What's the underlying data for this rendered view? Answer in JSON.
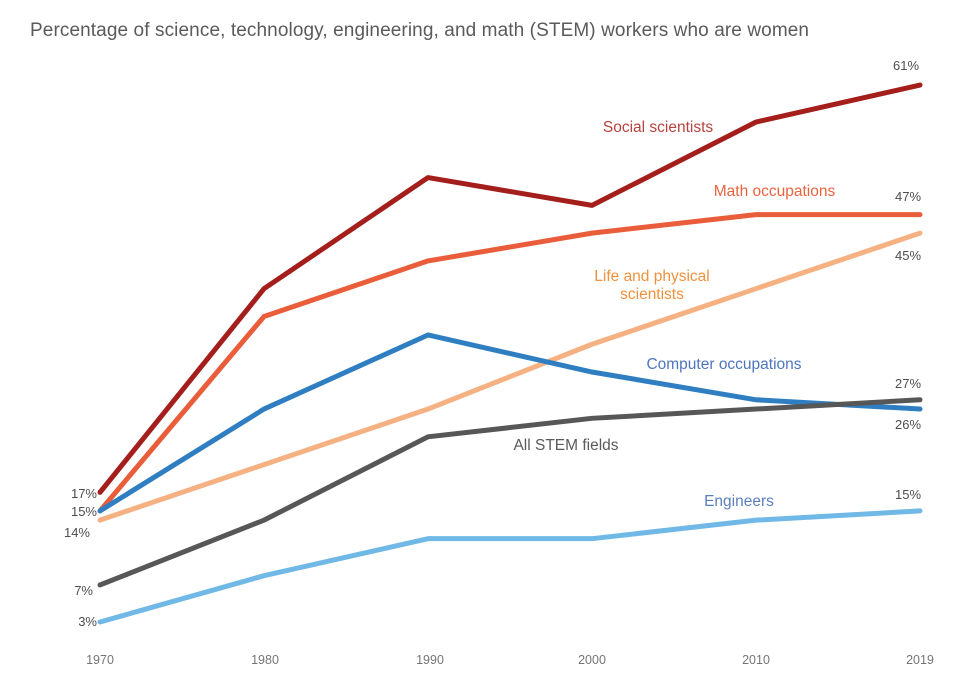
{
  "title": "Percentage of science, technology, engineering, and math (STEM) workers who are women",
  "chart_data": {
    "type": "line",
    "x": [
      1970,
      1980,
      1990,
      2000,
      2010,
      2019
    ],
    "xticks": [
      "1970",
      "1980",
      "1990",
      "2000",
      "2010",
      "2019"
    ],
    "ylim": [
      0,
      65
    ],
    "grid": false,
    "legend": "inline-series-labels",
    "series": [
      {
        "name": "Social scientists",
        "values": [
          17,
          39,
          51,
          48,
          57,
          61
        ],
        "color": "#A41E1C",
        "label_color": "#B5433E",
        "start_label": "17%",
        "end_label": "61%"
      },
      {
        "name": "Math occupations",
        "values": [
          15,
          36,
          42,
          45,
          47,
          47
        ],
        "color": "#EA5D3B",
        "label_color": "#E8643F",
        "start_label": "15%",
        "end_label": "47%"
      },
      {
        "name": "Life and physical scientists",
        "values": [
          14,
          20,
          26,
          33,
          39,
          45
        ],
        "color": "#F6B183",
        "label_color": "#F0913D",
        "start_label": "14%",
        "end_label": "45%"
      },
      {
        "name": "Computer occupations",
        "values": [
          15,
          26,
          34,
          30,
          27,
          26
        ],
        "color": "#2F7EC1",
        "label_color": "#4C76BE",
        "start_label": "15%",
        "end_label": "26%"
      },
      {
        "name": "All STEM fields",
        "values": [
          7,
          14,
          23,
          25,
          26,
          27
        ],
        "color": "#575757",
        "label_color": "#5A5A5A",
        "start_label": "7%",
        "end_label": "27%"
      },
      {
        "name": "Engineers",
        "values": [
          3,
          8,
          12,
          12,
          14,
          15
        ],
        "color": "#70B9E6",
        "label_color": "#5B7EBE",
        "start_label": "3%",
        "end_label": "15%"
      }
    ],
    "visible_start_labels": [
      "17%",
      "15%",
      "14%",
      "7%",
      "3%"
    ],
    "visible_end_labels": [
      "61%",
      "47%",
      "45%",
      "27%",
      "26%",
      "15%"
    ]
  },
  "colors": {
    "background": "#ffffff",
    "title_text": "#5a5a5a",
    "axis_text": "#757575",
    "value_label_text": "#4d4d4d"
  }
}
